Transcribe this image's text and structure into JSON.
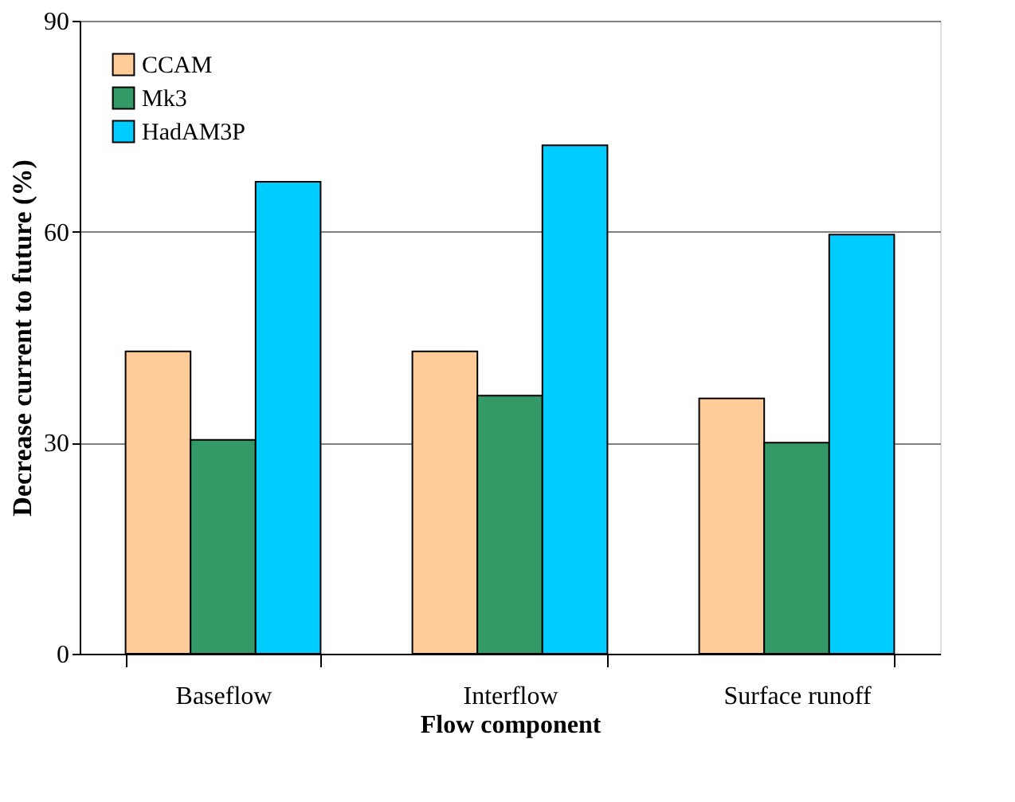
{
  "chart_data": {
    "type": "bar",
    "xlabel": "Flow component",
    "ylabel": "Decrease current to future (%)",
    "categories": [
      "Baseflow",
      "Interflow",
      "Surface runoff"
    ],
    "series": [
      {
        "name": "CCAM",
        "color": "#ffcc99",
        "values": [
          43,
          43,
          36.3
        ]
      },
      {
        "name": "Mk3",
        "color": "#339966",
        "values": [
          30.4,
          36.7,
          30
        ]
      },
      {
        "name": "HadAM3P",
        "color": "#00ccff",
        "values": [
          67.1,
          72.3,
          59.6
        ]
      }
    ],
    "ylim": [
      0,
      90
    ],
    "yticks": [
      0,
      30,
      60,
      90
    ],
    "grid": "y",
    "legend": "top left"
  }
}
